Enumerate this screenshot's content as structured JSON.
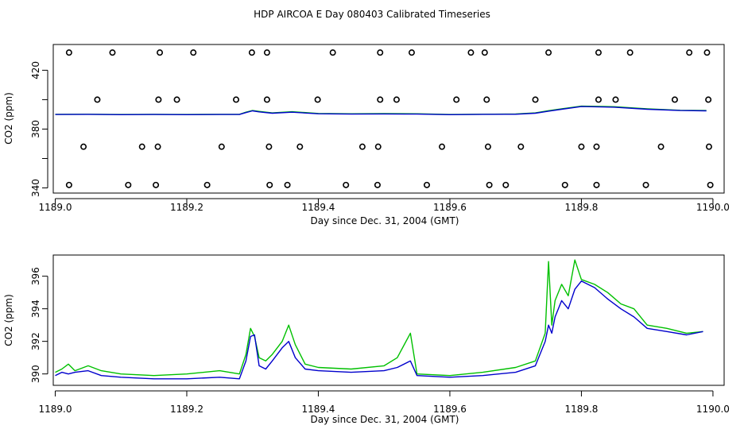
{
  "page": {
    "title": "HDP AIRCOA E  Day 080403  Calibrated Timeseries"
  },
  "colors": {
    "green": "#00c000",
    "blue": "#0000cc",
    "frame": "#000000"
  },
  "chart_data": [
    {
      "type": "line",
      "title": "HDP AIRCOA E  Day 080403  Calibrated Timeseries",
      "xlabel": "Day since Dec. 31, 2004 (GMT)",
      "ylabel": "CO2 (ppm)",
      "xlim": [
        1188.997,
        1190.017
      ],
      "ylim": [
        336.5,
        437.5
      ],
      "xticks": [
        1189.0,
        1189.2,
        1189.4,
        1189.6,
        1189.8,
        1190.0
      ],
      "xtick_labels": [
        "1189.0",
        "1189.2",
        "1189.4",
        "1189.6",
        "1189.8",
        "1190.0"
      ],
      "yticks": [
        340,
        360,
        380,
        400,
        420
      ],
      "ytick_labels": [
        "340",
        "380",
        "420"
      ],
      "grid": false,
      "series": [
        {
          "color": "green",
          "style": "line",
          "x": [
            1189.0,
            1189.05,
            1189.1,
            1189.15,
            1189.2,
            1189.25,
            1189.28,
            1189.29,
            1189.3,
            1189.31,
            1189.33,
            1189.36,
            1189.4,
            1189.45,
            1189.5,
            1189.55,
            1189.6,
            1189.65,
            1189.7,
            1189.73,
            1189.75,
            1189.77,
            1189.8,
            1189.85,
            1189.9,
            1189.95,
            1189.99
          ],
          "y": [
            390.0,
            390.1,
            389.9,
            390.0,
            389.9,
            390.0,
            390.0,
            391.5,
            392.6,
            392.0,
            391.0,
            391.8,
            390.6,
            390.4,
            390.5,
            390.4,
            389.9,
            390.1,
            390.3,
            391.0,
            392.5,
            393.8,
            395.6,
            395.2,
            393.8,
            392.8,
            392.6
          ]
        },
        {
          "color": "blue",
          "style": "line",
          "x": [
            1189.0,
            1189.05,
            1189.1,
            1189.15,
            1189.2,
            1189.25,
            1189.28,
            1189.29,
            1189.3,
            1189.31,
            1189.33,
            1189.36,
            1189.4,
            1189.45,
            1189.5,
            1189.55,
            1189.6,
            1189.65,
            1189.7,
            1189.73,
            1189.75,
            1189.77,
            1189.8,
            1189.85,
            1189.9,
            1189.95,
            1189.99
          ],
          "y": [
            389.9,
            390.0,
            389.8,
            389.9,
            389.8,
            389.9,
            389.9,
            391.2,
            392.4,
            391.7,
            390.8,
            391.5,
            390.4,
            390.2,
            390.3,
            390.2,
            389.8,
            390.0,
            390.1,
            390.8,
            392.2,
            393.5,
            395.3,
            394.9,
            393.5,
            392.6,
            392.4
          ]
        },
        {
          "color": "black",
          "style": "points",
          "x": [
            1189.021,
            1189.087,
            1189.159,
            1189.21,
            1189.299,
            1189.322,
            1189.422,
            1189.494,
            1189.542,
            1189.632,
            1189.653,
            1189.75,
            1189.826,
            1189.874,
            1189.964,
            1189.991
          ],
          "y": [
            432,
            432,
            432,
            432,
            432,
            432,
            432,
            432,
            432,
            432,
            432,
            432,
            432,
            432,
            432,
            432
          ]
        },
        {
          "color": "black",
          "style": "points",
          "x": [
            1189.064,
            1189.157,
            1189.185,
            1189.275,
            1189.322,
            1189.399,
            1189.494,
            1189.519,
            1189.61,
            1189.656,
            1189.73,
            1189.826,
            1189.852,
            1189.942,
            1189.993
          ],
          "y": [
            400,
            400,
            400,
            400,
            400,
            400,
            400,
            400,
            400,
            400,
            400,
            400,
            400,
            400,
            400
          ]
        },
        {
          "color": "black",
          "style": "points",
          "x": [
            1189.043,
            1189.132,
            1189.156,
            1189.253,
            1189.325,
            1189.372,
            1189.467,
            1189.491,
            1189.588,
            1189.658,
            1189.708,
            1189.8,
            1189.823,
            1189.921,
            1189.994
          ],
          "y": [
            368,
            368,
            368,
            368,
            368,
            368,
            368,
            368,
            368,
            368,
            368,
            368,
            368,
            368,
            368
          ]
        },
        {
          "color": "black",
          "style": "points",
          "x": [
            1189.021,
            1189.111,
            1189.153,
            1189.231,
            1189.326,
            1189.353,
            1189.442,
            1189.49,
            1189.565,
            1189.66,
            1189.685,
            1189.775,
            1189.823,
            1189.898,
            1189.996
          ],
          "y": [
            342,
            342,
            342,
            342,
            342,
            342,
            342,
            342,
            342,
            342,
            342,
            342,
            342,
            342,
            342
          ]
        }
      ]
    },
    {
      "type": "line",
      "xlabel": "Day since Dec. 31, 2004 (GMT)",
      "ylabel": "CO2 (ppm)",
      "xlim": [
        1188.997,
        1190.017
      ],
      "ylim": [
        389.3,
        397.3
      ],
      "xticks": [
        1189.0,
        1189.2,
        1189.4,
        1189.6,
        1189.8,
        1190.0
      ],
      "xtick_labels": [
        "1189.0",
        "1189.2",
        "1189.4",
        "1189.6",
        "1189.8",
        "1190.0"
      ],
      "yticks": [
        390,
        392,
        394,
        396
      ],
      "ytick_labels": [
        "390",
        "392",
        "394",
        "396"
      ],
      "grid": false,
      "series": [
        {
          "color": "green",
          "style": "line",
          "x": [
            1189.0,
            1189.01,
            1189.02,
            1189.03,
            1189.05,
            1189.07,
            1189.1,
            1189.15,
            1189.2,
            1189.25,
            1189.28,
            1189.29,
            1189.297,
            1189.303,
            1189.31,
            1189.32,
            1189.33,
            1189.345,
            1189.355,
            1189.365,
            1189.38,
            1189.4,
            1189.45,
            1189.5,
            1189.52,
            1189.54,
            1189.55,
            1189.6,
            1189.65,
            1189.7,
            1189.73,
            1189.745,
            1189.75,
            1189.755,
            1189.76,
            1189.77,
            1189.78,
            1189.79,
            1189.8,
            1189.82,
            1189.84,
            1189.86,
            1189.88,
            1189.9,
            1189.93,
            1189.96,
            1189.985
          ],
          "y": [
            390.1,
            390.3,
            390.6,
            390.2,
            390.5,
            390.2,
            390.0,
            389.9,
            390.0,
            390.2,
            390.0,
            391.2,
            392.8,
            392.3,
            391.0,
            390.8,
            391.2,
            392.0,
            393.0,
            391.8,
            390.6,
            390.4,
            390.3,
            390.5,
            391.0,
            392.5,
            390.0,
            389.9,
            390.1,
            390.4,
            390.8,
            392.5,
            396.9,
            393.0,
            394.5,
            395.5,
            394.8,
            397.0,
            395.8,
            395.5,
            395.0,
            394.3,
            394.0,
            393.0,
            392.8,
            392.5,
            392.6
          ]
        },
        {
          "color": "blue",
          "style": "line",
          "x": [
            1189.0,
            1189.01,
            1189.02,
            1189.03,
            1189.05,
            1189.07,
            1189.1,
            1189.15,
            1189.2,
            1189.25,
            1189.28,
            1189.29,
            1189.297,
            1189.303,
            1189.31,
            1189.32,
            1189.33,
            1189.345,
            1189.355,
            1189.365,
            1189.38,
            1189.4,
            1189.45,
            1189.5,
            1189.52,
            1189.54,
            1189.55,
            1189.6,
            1189.65,
            1189.7,
            1189.73,
            1189.745,
            1189.75,
            1189.755,
            1189.76,
            1189.77,
            1189.78,
            1189.79,
            1189.8,
            1189.82,
            1189.84,
            1189.86,
            1189.88,
            1189.9,
            1189.93,
            1189.96,
            1189.985
          ],
          "y": [
            389.9,
            390.1,
            390.0,
            390.1,
            390.2,
            389.9,
            389.8,
            389.7,
            389.7,
            389.8,
            389.7,
            390.8,
            392.3,
            392.4,
            390.5,
            390.3,
            390.8,
            391.6,
            392.0,
            391.0,
            390.3,
            390.2,
            390.1,
            390.2,
            390.4,
            390.8,
            389.9,
            389.8,
            389.9,
            390.1,
            390.5,
            392.0,
            393.0,
            392.5,
            393.5,
            394.5,
            394.0,
            395.2,
            395.7,
            395.3,
            394.6,
            394.0,
            393.5,
            392.8,
            392.6,
            392.4,
            392.6
          ]
        }
      ]
    }
  ]
}
